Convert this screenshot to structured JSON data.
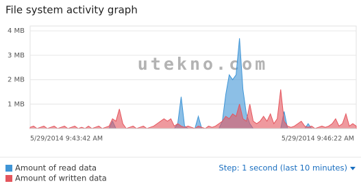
{
  "title": "File system activity graph",
  "watermark": "utekno.com",
  "chart_data": {
    "type": "area",
    "ylim": [
      0,
      4.2
    ],
    "yticks": [
      {
        "value": 1,
        "label": "1 MB"
      },
      {
        "value": 2,
        "label": "2 MB"
      },
      {
        "value": 3,
        "label": "3 MB"
      },
      {
        "value": 4,
        "label": "4 MB"
      }
    ],
    "grid": true,
    "x_labels": [
      "5/29/2014 9:43:42 AM",
      "5/29/2014 9:46:22 AM"
    ],
    "series": [
      {
        "name": "Amount of read data",
        "color": "#3f95d6",
        "values": [
          0,
          0,
          0,
          0,
          0,
          0,
          0,
          0,
          0,
          0,
          0,
          0,
          0,
          0,
          0,
          0,
          0,
          0,
          0,
          0,
          0,
          0,
          0,
          0,
          0.3,
          0,
          0,
          0,
          0,
          0,
          0,
          0,
          0,
          0,
          0,
          0,
          0,
          0,
          0,
          0,
          0,
          0,
          0,
          0.2,
          1.3,
          0.1,
          0,
          0,
          0,
          0.5,
          0,
          0,
          0,
          0,
          0,
          0,
          0.3,
          1.4,
          2.2,
          2.0,
          2.2,
          3.7,
          1.6,
          0.6,
          0.2,
          0,
          0,
          0,
          0,
          0,
          0,
          0,
          0,
          0,
          0.7,
          0,
          0,
          0,
          0,
          0,
          0,
          0.2,
          0,
          0,
          0,
          0,
          0,
          0,
          0,
          0,
          0,
          0,
          0,
          0,
          0,
          0
        ]
      },
      {
        "name": "Amount of written data",
        "color": "#e4555d",
        "values": [
          0.05,
          0.1,
          0,
          0.05,
          0.1,
          0,
          0.05,
          0.1,
          0,
          0.05,
          0.1,
          0,
          0.05,
          0.1,
          0,
          0.05,
          0,
          0.1,
          0,
          0.05,
          0.1,
          0,
          0.05,
          0.1,
          0.4,
          0.3,
          0.8,
          0.2,
          0,
          0.05,
          0.1,
          0,
          0.05,
          0.1,
          0,
          0.05,
          0.1,
          0.2,
          0.3,
          0.4,
          0.3,
          0.4,
          0.1,
          0.2,
          0.1,
          0.05,
          0.1,
          0.05,
          0,
          0.1,
          0.05,
          0,
          0.1,
          0.05,
          0.1,
          0.2,
          0.3,
          0.5,
          0.4,
          0.6,
          0.5,
          1.0,
          0.4,
          0.3,
          1.0,
          0.3,
          0.2,
          0.3,
          0.5,
          0.3,
          0.6,
          0.2,
          0.4,
          1.6,
          0.3,
          0.1,
          0.05,
          0.1,
          0.2,
          0.3,
          0.1,
          0.05,
          0.1,
          0,
          0.05,
          0.1,
          0.05,
          0.1,
          0.2,
          0.4,
          0.1,
          0.2,
          0.6,
          0.1,
          0.2,
          0.1
        ]
      }
    ]
  },
  "footer": {
    "step_selector": "Step: 1 second (last 10 minutes)"
  }
}
